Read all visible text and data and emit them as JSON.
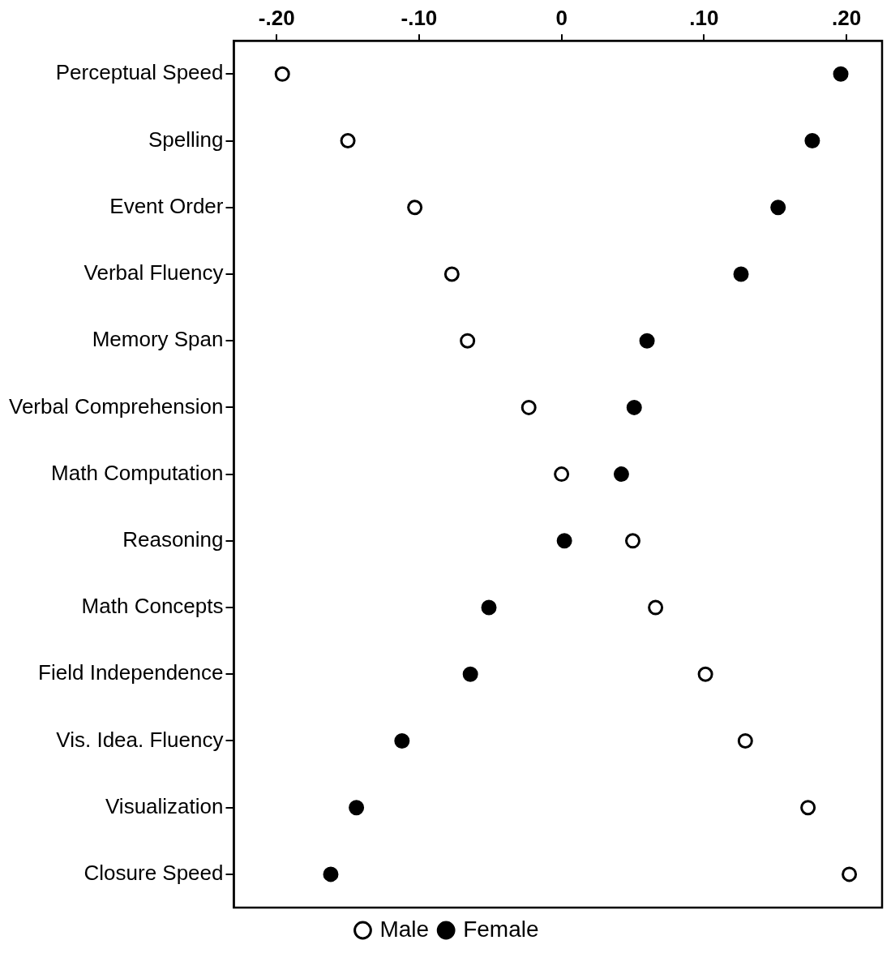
{
  "chart_data": {
    "type": "scatter",
    "orientation": "horizontal",
    "categories": [
      "Perceptual Speed",
      "Spelling",
      "Event Order",
      "Verbal Fluency",
      "Memory Span",
      "Verbal Comprehension",
      "Math Computation",
      "Reasoning",
      "Math Concepts",
      "Field Independence",
      "Vis. Idea. Fluency",
      "Visualization",
      "Closure Speed"
    ],
    "series": [
      {
        "name": "Male",
        "color": "#ffffff",
        "values": [
          -0.196,
          -0.15,
          -0.103,
          -0.077,
          -0.066,
          -0.023,
          0.0,
          0.05,
          0.066,
          0.101,
          0.129,
          0.173,
          0.202
        ]
      },
      {
        "name": "Female",
        "color": "#000000",
        "values": [
          0.196,
          0.176,
          0.152,
          0.126,
          0.06,
          0.051,
          0.042,
          0.002,
          -0.051,
          -0.064,
          -0.112,
          -0.144,
          -0.162
        ]
      }
    ],
    "xlim": [
      -0.23,
      0.225
    ],
    "xticks": [
      {
        "value": -0.2,
        "label": "-.20"
      },
      {
        "value": -0.1,
        "label": "-.10"
      },
      0,
      {
        "value": 0.1,
        "label": ".10"
      },
      {
        "value": 0.2,
        "label": ".20"
      }
    ],
    "grid": false,
    "legend": "bottom",
    "marker": "circle"
  }
}
